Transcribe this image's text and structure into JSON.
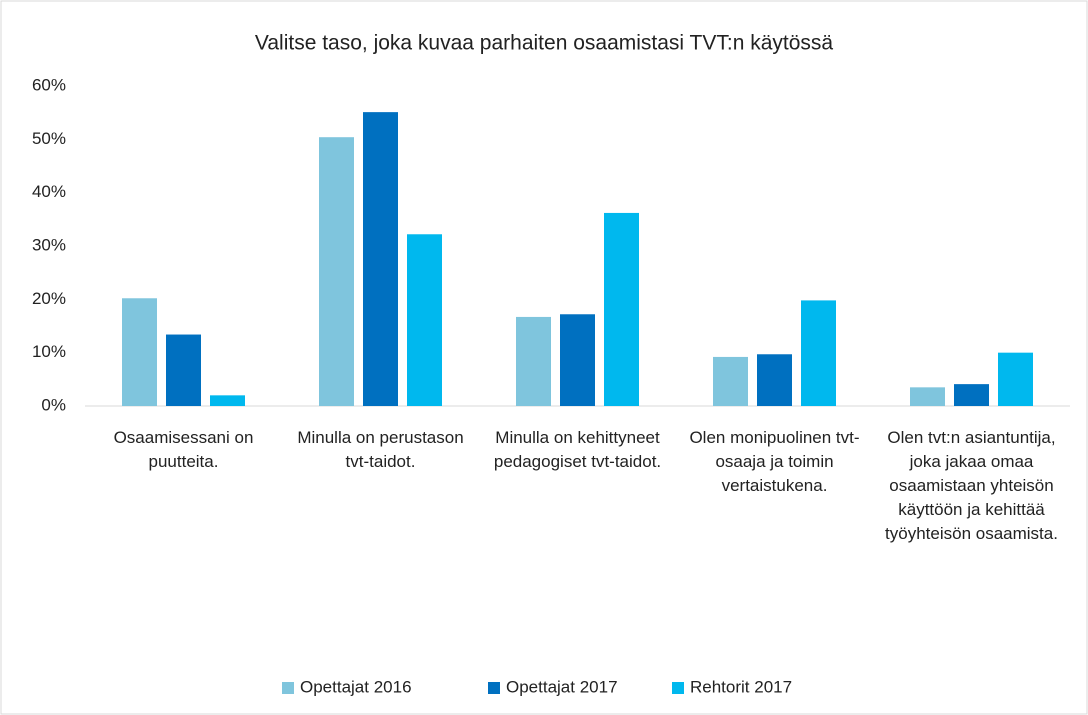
{
  "chart_data": {
    "type": "bar",
    "title": "Valitse taso, joka kuvaa parhaiten osaamistasi TVT:n käytössä",
    "categories": [
      "Osaamisessani on puutteita.",
      "Minulla on perustason tvt-taidot.",
      "Minulla on kehittyneet pedagogiset tvt-taidot.",
      "Olen monipuolinen tvt-osaaja ja toimin vertaistukena.",
      "Olen tvt:n asiantuntija, joka jakaa omaa osaamistaan yhteisön käyttöön ja kehittää työyhteisön osaamista."
    ],
    "series": [
      {
        "name": "Opettajat 2016",
        "color": "#7fc5dd",
        "values": [
          20.2,
          50.4,
          16.7,
          9.2,
          3.5
        ]
      },
      {
        "name": "Opettajat 2017",
        "color": "#0070c0",
        "values": [
          13.4,
          55.1,
          17.2,
          9.7,
          4.1
        ]
      },
      {
        "name": "Rehtorit 2017",
        "color": "#00b8ee",
        "values": [
          2,
          32.2,
          36.2,
          19.8,
          10
        ]
      }
    ],
    "ylim": [
      0,
      60
    ],
    "yticks": [
      {
        "value": 0,
        "label": "0%"
      },
      {
        "value": 10,
        "label": "10%"
      },
      {
        "value": 20,
        "label": "20%"
      },
      {
        "value": 30,
        "label": "30%"
      },
      {
        "value": 40,
        "label": "40%"
      },
      {
        "value": 50,
        "label": "50%"
      },
      {
        "value": 60,
        "label": "60%"
      }
    ],
    "grid": false,
    "legend": "bottom"
  }
}
